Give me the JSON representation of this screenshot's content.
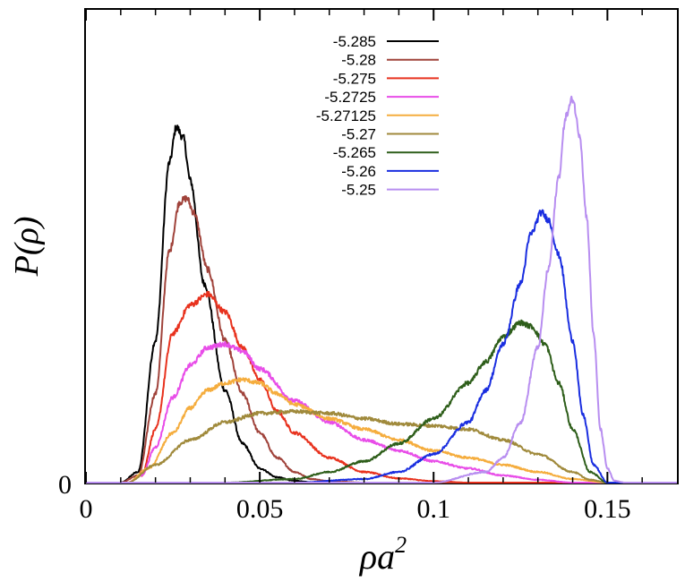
{
  "chart_data": {
    "type": "line",
    "title": "",
    "xlabel": "ρa²",
    "ylabel": "P(ρ)",
    "xlim": [
      0,
      0.17
    ],
    "ylim": [
      0,
      1
    ],
    "xticks": [
      0,
      0.05,
      0.1,
      0.15
    ],
    "xtick_labels": [
      "0",
      "0.05",
      "0.1",
      "0.15"
    ],
    "ytick_labels": [
      "0"
    ],
    "grid": false,
    "legend_position": "top-center",
    "series": [
      {
        "name": "-5.285",
        "color": "#000000",
        "x": [
          0.01,
          0.015,
          0.02,
          0.024,
          0.026,
          0.028,
          0.03,
          0.034,
          0.04,
          0.045,
          0.05,
          0.055,
          0.06,
          0.065,
          0.07
        ],
        "y": [
          0.0,
          0.03,
          0.4,
          0.9,
          1.0,
          0.97,
          0.85,
          0.56,
          0.26,
          0.11,
          0.04,
          0.015,
          0.005,
          0.001,
          0.0
        ]
      },
      {
        "name": "-5.28",
        "color": "#a0433b",
        "x": [
          0.01,
          0.015,
          0.02,
          0.024,
          0.027,
          0.029,
          0.031,
          0.035,
          0.04,
          0.045,
          0.05,
          0.055,
          0.06,
          0.065,
          0.07,
          0.08
        ],
        "y": [
          0.0,
          0.02,
          0.25,
          0.65,
          0.79,
          0.8,
          0.76,
          0.6,
          0.4,
          0.25,
          0.14,
          0.07,
          0.03,
          0.01,
          0.004,
          0.0
        ]
      },
      {
        "name": "-5.275",
        "color": "#e8321e",
        "x": [
          0.012,
          0.016,
          0.02,
          0.025,
          0.03,
          0.035,
          0.04,
          0.045,
          0.05,
          0.055,
          0.06,
          0.07,
          0.08,
          0.09,
          0.1,
          0.11
        ],
        "y": [
          0.0,
          0.02,
          0.15,
          0.42,
          0.5,
          0.53,
          0.48,
          0.38,
          0.29,
          0.2,
          0.14,
          0.07,
          0.03,
          0.012,
          0.004,
          0.0
        ]
      },
      {
        "name": "-5.2725",
        "color": "#e84de8",
        "x": [
          0.012,
          0.016,
          0.02,
          0.025,
          0.03,
          0.035,
          0.04,
          0.045,
          0.05,
          0.06,
          0.07,
          0.08,
          0.09,
          0.1,
          0.11,
          0.12,
          0.13,
          0.14
        ],
        "y": [
          0.0,
          0.02,
          0.1,
          0.24,
          0.33,
          0.38,
          0.39,
          0.37,
          0.32,
          0.23,
          0.17,
          0.12,
          0.09,
          0.06,
          0.04,
          0.02,
          0.008,
          0.0
        ]
      },
      {
        "name": "-5.27125",
        "color": "#f5ad3e",
        "x": [
          0.012,
          0.018,
          0.025,
          0.03,
          0.035,
          0.04,
          0.045,
          0.05,
          0.055,
          0.06,
          0.07,
          0.08,
          0.09,
          0.1,
          0.11,
          0.12,
          0.13,
          0.14,
          0.15
        ],
        "y": [
          0.0,
          0.04,
          0.14,
          0.21,
          0.26,
          0.28,
          0.29,
          0.28,
          0.25,
          0.22,
          0.18,
          0.15,
          0.12,
          0.09,
          0.07,
          0.05,
          0.03,
          0.01,
          0.0
        ]
      },
      {
        "name": "-5.27",
        "color": "#a08a3c",
        "x": [
          0.012,
          0.02,
          0.03,
          0.04,
          0.05,
          0.06,
          0.07,
          0.08,
          0.09,
          0.1,
          0.11,
          0.12,
          0.13,
          0.14,
          0.145,
          0.15
        ],
        "y": [
          0.0,
          0.05,
          0.12,
          0.17,
          0.195,
          0.2,
          0.195,
          0.18,
          0.165,
          0.16,
          0.15,
          0.12,
          0.08,
          0.03,
          0.008,
          0.0
        ]
      },
      {
        "name": "-5.265",
        "color": "#2e5e1a",
        "x": [
          0.04,
          0.06,
          0.07,
          0.08,
          0.09,
          0.1,
          0.11,
          0.115,
          0.12,
          0.125,
          0.128,
          0.132,
          0.136,
          0.14,
          0.145,
          0.15
        ],
        "y": [
          0.0,
          0.01,
          0.03,
          0.06,
          0.11,
          0.18,
          0.28,
          0.34,
          0.41,
          0.45,
          0.44,
          0.39,
          0.28,
          0.15,
          0.03,
          0.0
        ]
      },
      {
        "name": "-5.26",
        "color": "#1a2ee0",
        "x": [
          0.06,
          0.08,
          0.09,
          0.1,
          0.11,
          0.115,
          0.12,
          0.125,
          0.128,
          0.131,
          0.133,
          0.136,
          0.14,
          0.143,
          0.146,
          0.15
        ],
        "y": [
          0.0,
          0.01,
          0.03,
          0.08,
          0.17,
          0.26,
          0.39,
          0.56,
          0.7,
          0.76,
          0.74,
          0.64,
          0.4,
          0.19,
          0.05,
          0.0
        ]
      },
      {
        "name": "-5.25",
        "color": "#b88ef0",
        "x": [
          0.1,
          0.115,
          0.12,
          0.125,
          0.13,
          0.133,
          0.136,
          0.138,
          0.14,
          0.142,
          0.144,
          0.146,
          0.148,
          0.15,
          0.152,
          0.155
        ],
        "y": [
          0.0,
          0.03,
          0.07,
          0.17,
          0.38,
          0.6,
          0.86,
          1.03,
          1.08,
          0.98,
          0.75,
          0.42,
          0.15,
          0.04,
          0.005,
          0.0
        ]
      }
    ]
  }
}
